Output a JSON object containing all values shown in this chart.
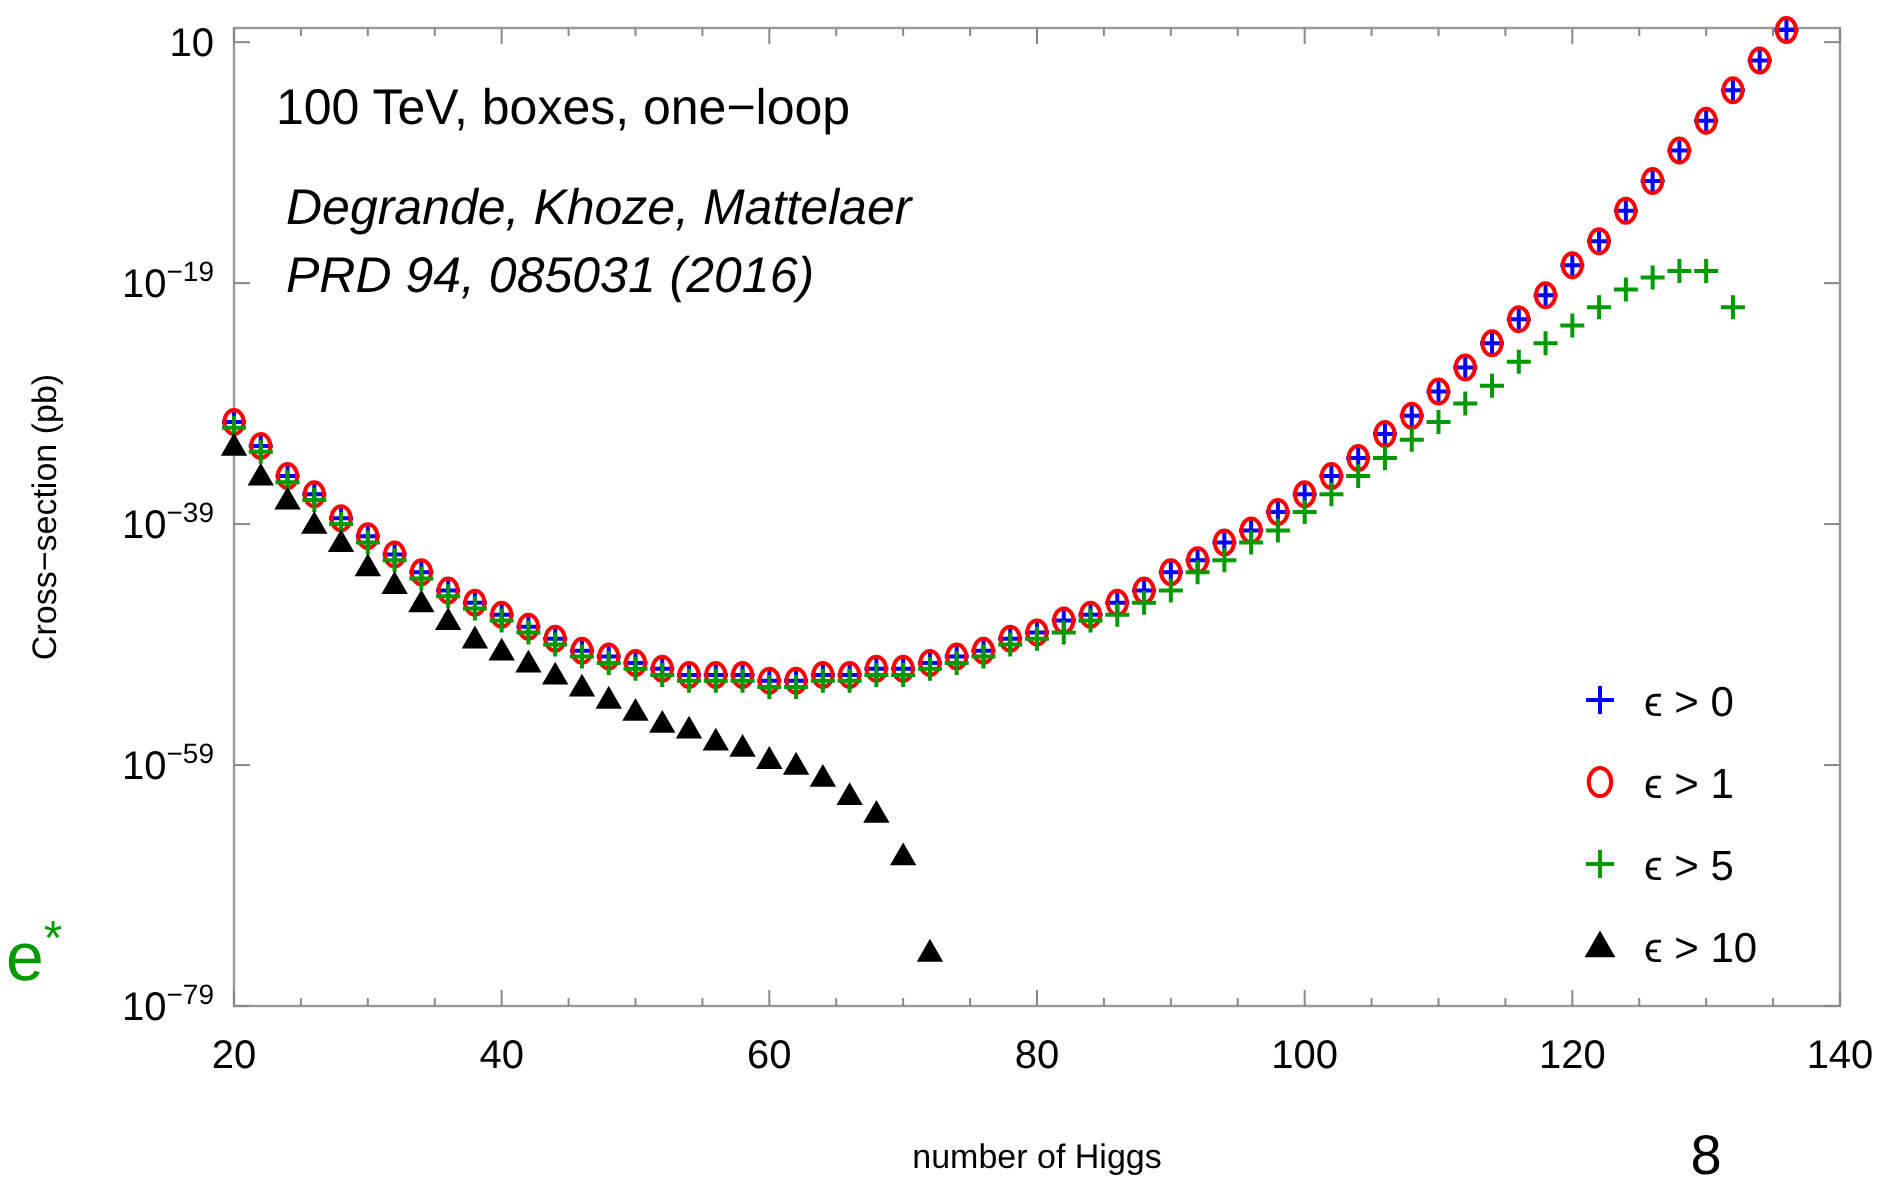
{
  "chart_data": {
    "type": "scatter",
    "xlabel": "number of Higgs",
    "ylabel": "Cross−section (pb)",
    "annotations": [
      "100 TeV, boxes, one−loop",
      "Degrande, Khoze, Mattelaer",
      "PRD 94, 085031 (2016)",
      "e$^{*}$",
      "8"
    ],
    "x": [
      20,
      22,
      24,
      26,
      28,
      30,
      32,
      34,
      36,
      38,
      40,
      42,
      44,
      46,
      48,
      50,
      52,
      54,
      56,
      58,
      60,
      62,
      64,
      66,
      68,
      70,
      72,
      74,
      76,
      78,
      80,
      82,
      84,
      86,
      88,
      90,
      92,
      94,
      96,
      98,
      100,
      102,
      104,
      106,
      108,
      110,
      112,
      114,
      116,
      118,
      120,
      122,
      124,
      126,
      128,
      130,
      132,
      134,
      136
    ],
    "series": [
      {
        "name": "ϵ > 0",
        "color": "#0000ff",
        "marker": "cross",
        "values": [
          3e-31,
          3e-33,
          1e-35,
          3e-37,
          3e-39,
          1e-40,
          3e-42,
          1e-43,
          3e-45,
          3e-46,
          3e-47,
          3e-48,
          3e-49,
          3e-50,
          1e-50,
          3e-51,
          1e-51,
          3e-52,
          3e-52,
          3e-52,
          1e-52,
          1e-52,
          3e-52,
          3e-52,
          1e-51,
          1e-51,
          3e-51,
          1e-50,
          3e-50,
          3e-49,
          1e-48,
          1e-47,
          3e-47,
          3e-46,
          3e-45,
          1e-43,
          1e-42,
          3e-41,
          3e-40,
          1e-38,
          3e-37,
          1e-35,
          3e-34,
          3e-32,
          1e-30,
          1e-28,
          1e-26,
          1e-24,
          1e-22,
          1e-20,
          3e-18,
          3e-16,
          1e-13,
          3e-11,
          1e-08,
          3e-06,
          0.001,
          0.3,
          100
        ]
      },
      {
        "name": "ϵ > 1",
        "color": "#ff0000",
        "marker": "circle",
        "values": [
          3e-31,
          3e-33,
          1e-35,
          3e-37,
          3e-39,
          1e-40,
          3e-42,
          1e-43,
          3e-45,
          3e-46,
          3e-47,
          3e-48,
          3e-49,
          3e-50,
          1e-50,
          3e-51,
          1e-51,
          3e-52,
          3e-52,
          3e-52,
          1e-52,
          1e-52,
          3e-52,
          3e-52,
          1e-51,
          1e-51,
          3e-51,
          1e-50,
          3e-50,
          3e-49,
          1e-48,
          1e-47,
          3e-47,
          3e-46,
          3e-45,
          1e-43,
          1e-42,
          3e-41,
          3e-40,
          1e-38,
          3e-37,
          1e-35,
          3e-34,
          3e-32,
          1e-30,
          1e-28,
          1e-26,
          1e-24,
          1e-22,
          1e-20,
          3e-18,
          3e-16,
          1e-13,
          3e-11,
          1e-08,
          3e-06,
          0.001,
          0.3,
          100
        ]
      },
      {
        "name": "ϵ > 5",
        "color": "#009900",
        "marker": "cross",
        "x": [
          20,
          22,
          24,
          26,
          28,
          30,
          32,
          34,
          36,
          38,
          40,
          42,
          44,
          46,
          48,
          50,
          52,
          54,
          56,
          58,
          60,
          62,
          64,
          66,
          68,
          70,
          72,
          74,
          76,
          78,
          80,
          82,
          84,
          86,
          88,
          90,
          92,
          94,
          96,
          98,
          100,
          102,
          104,
          106,
          108,
          110,
          112,
          114,
          116,
          118,
          120,
          122,
          124,
          126,
          128,
          130,
          132
        ],
        "values": [
          1e-31,
          1e-33,
          3e-36,
          1e-37,
          1e-39,
          3e-41,
          1e-42,
          3e-44,
          1e-45,
          1e-46,
          1e-47,
          1e-48,
          1e-49,
          1e-50,
          3e-51,
          1e-51,
          3e-52,
          1e-52,
          1e-52,
          1e-52,
          3e-53,
          3e-53,
          1e-52,
          1e-52,
          3e-52,
          3e-52,
          1e-51,
          3e-51,
          1e-50,
          1e-49,
          3e-49,
          1e-48,
          1e-47,
          3e-47,
          3e-46,
          3e-45,
          1e-43,
          1e-42,
          3e-41,
          3e-40,
          1e-38,
          3e-37,
          1e-35,
          3e-34,
          1e-32,
          3e-31,
          1e-29,
          3e-28,
          3e-26,
          1e-24,
          3e-23,
          1e-21,
          3e-20,
          3e-19,
          1e-18,
          1e-18,
          1e-21
        ]
      },
      {
        "name": "ϵ > 10",
        "color": "#000000",
        "marker": "triangle",
        "x": [
          20,
          22,
          24,
          26,
          28,
          30,
          32,
          34,
          36,
          38,
          40,
          42,
          44,
          46,
          48,
          50,
          52,
          54,
          56,
          58,
          60,
          62,
          64,
          66,
          68,
          70,
          72
        ],
        "values": [
          3e-33,
          1e-35,
          1e-37,
          1e-39,
          3e-41,
          3e-43,
          1e-44,
          3e-46,
          1e-47,
          3e-49,
          3e-50,
          3e-51,
          3e-52,
          3e-53,
          3e-54,
          3e-55,
          3e-56,
          1e-56,
          1e-57,
          3e-58,
          3e-59,
          1e-59,
          1e-60,
          3e-62,
          1e-63,
          3e-67,
          3e-75
        ]
      }
    ],
    "log": "y",
    "xlim": [
      20,
      140
    ],
    "ylim": [
      1e-79,
      150
    ],
    "xticks": [
      20,
      {
        "value": 25,
        "label": null
      },
      {
        "value": 30,
        "label": null
      },
      {
        "value": 35,
        "label": null
      },
      40,
      {
        "value": 45,
        "label": null
      },
      {
        "value": 50,
        "label": null
      },
      {
        "value": 55,
        "label": null
      },
      60,
      {
        "value": 65,
        "label": null
      },
      {
        "value": 70,
        "label": null
      },
      {
        "value": 75,
        "label": null
      },
      80,
      {
        "value": 85,
        "label": null
      },
      {
        "value": 90,
        "label": null
      },
      {
        "value": 95,
        "label": null
      },
      100,
      {
        "value": 105,
        "label": null
      },
      {
        "value": 110,
        "label": null
      },
      {
        "value": 115,
        "label": null
      },
      120,
      {
        "value": 125,
        "label": null
      },
      {
        "value": 130,
        "label": null
      },
      {
        "value": 135,
        "label": null
      },
      140
    ],
    "yticks": [
      {
        "value": 1e-79,
        "label": "10$^{−79}$"
      },
      {
        "value": 1e-59,
        "label": "10$^{−59}$"
      },
      {
        "value": 1e-39,
        "label": "10$^{−39}$"
      },
      {
        "value": 1e-19,
        "label": "10$^{−19}$"
      },
      10
    ],
    "grid": false,
    "legend": "bottom right"
  }
}
